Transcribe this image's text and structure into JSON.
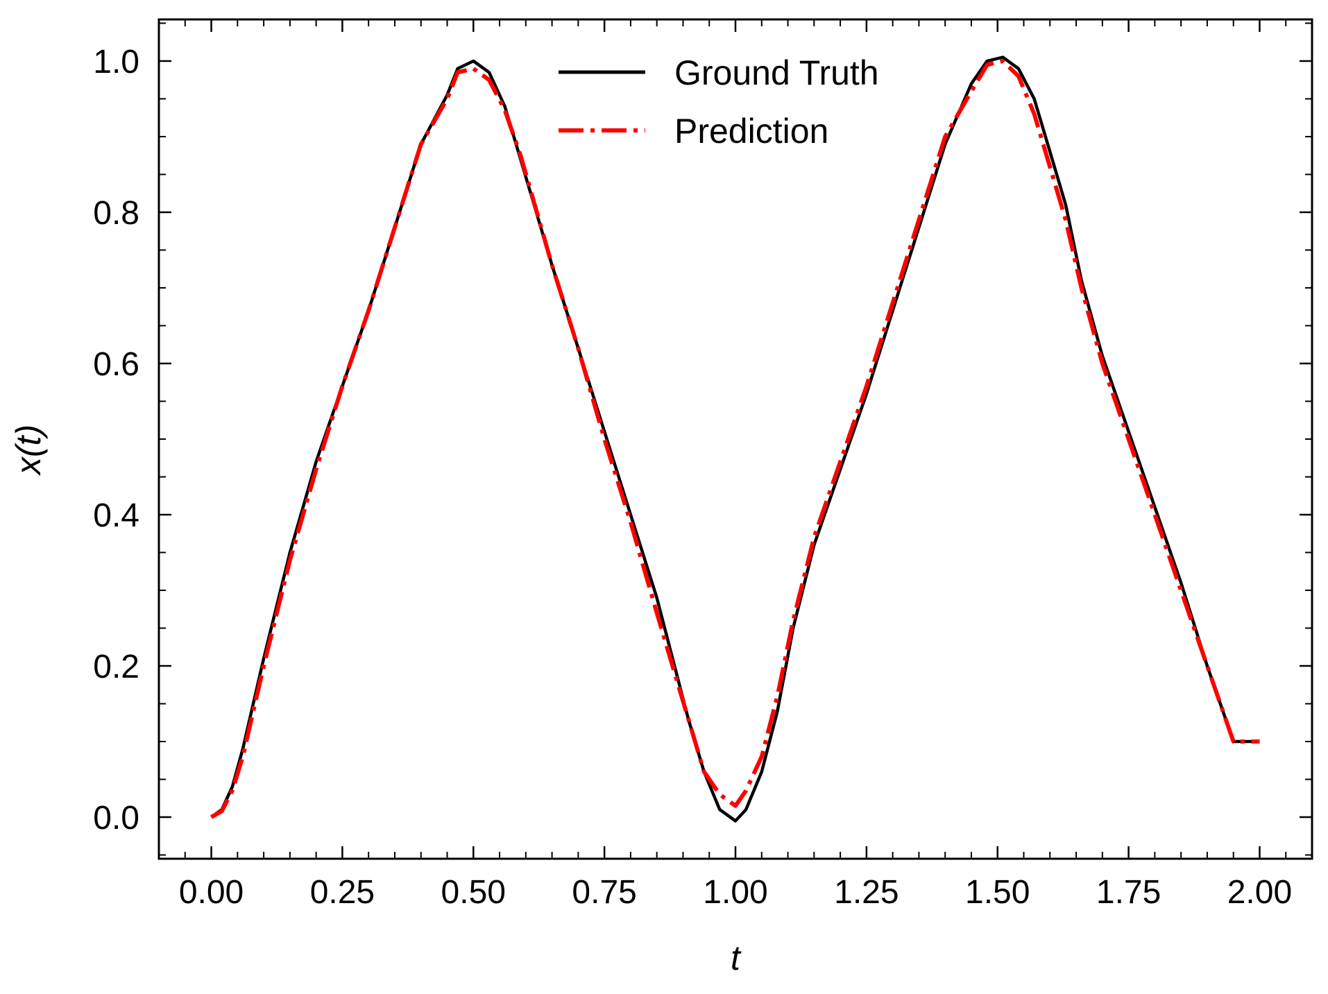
{
  "chart_data": {
    "type": "line",
    "title": "",
    "xlabel": "t",
    "ylabel_base": "x(",
    "ylabel_var": "t",
    "ylabel_close": ")",
    "xlim": [
      -0.1,
      2.1
    ],
    "ylim": [
      -0.055,
      1.055
    ],
    "x_ticks": [
      0.0,
      0.25,
      0.5,
      0.75,
      1.0,
      1.25,
      1.5,
      1.75,
      2.0
    ],
    "x_tick_labels": [
      "0.00",
      "0.25",
      "0.50",
      "0.75",
      "1.00",
      "1.25",
      "1.50",
      "1.75",
      "2.00"
    ],
    "y_ticks": [
      0.0,
      0.2,
      0.4,
      0.6,
      0.8,
      1.0
    ],
    "y_tick_labels": [
      "0.0",
      "0.2",
      "0.4",
      "0.6",
      "0.8",
      "1.0"
    ],
    "x_minor_step": 0.05,
    "y_minor_step": 0.05,
    "grid": false,
    "legend_position": "top-center",
    "series": [
      {
        "name": "Ground Truth",
        "color": "#000000",
        "style": "solid",
        "x": [
          0.0,
          0.02,
          0.04,
          0.06,
          0.08,
          0.1,
          0.125,
          0.15,
          0.175,
          0.2,
          0.25,
          0.3,
          0.35,
          0.4,
          0.45,
          0.47,
          0.5,
          0.53,
          0.56,
          0.59,
          0.65,
          0.7,
          0.75,
          0.8,
          0.85,
          0.88,
          0.91,
          0.94,
          0.97,
          1.0,
          1.02,
          1.05,
          1.08,
          1.11,
          1.15,
          1.2,
          1.25,
          1.3,
          1.35,
          1.4,
          1.45,
          1.48,
          1.51,
          1.54,
          1.57,
          1.6,
          1.63,
          1.66,
          1.7,
          1.75,
          1.8,
          1.85,
          1.9,
          1.95,
          2.0
        ],
        "y": [
          0.0,
          0.01,
          0.04,
          0.09,
          0.15,
          0.21,
          0.28,
          0.35,
          0.41,
          0.47,
          0.57,
          0.67,
          0.78,
          0.89,
          0.955,
          0.99,
          1.0,
          0.985,
          0.94,
          0.87,
          0.73,
          0.62,
          0.51,
          0.4,
          0.29,
          0.21,
          0.13,
          0.06,
          0.01,
          -0.005,
          0.01,
          0.06,
          0.14,
          0.25,
          0.36,
          0.46,
          0.56,
          0.67,
          0.78,
          0.89,
          0.97,
          1.0,
          1.005,
          0.99,
          0.95,
          0.88,
          0.81,
          0.71,
          0.61,
          0.51,
          0.41,
          0.31,
          0.2,
          0.1,
          0.1
        ]
      },
      {
        "name": "Prediction",
        "color": "#ff0000",
        "style": "dashdot",
        "x": [
          0.0,
          0.02,
          0.04,
          0.06,
          0.08,
          0.1,
          0.125,
          0.15,
          0.175,
          0.2,
          0.25,
          0.3,
          0.35,
          0.4,
          0.45,
          0.47,
          0.5,
          0.53,
          0.56,
          0.59,
          0.65,
          0.7,
          0.75,
          0.8,
          0.85,
          0.88,
          0.91,
          0.94,
          0.97,
          1.0,
          1.02,
          1.05,
          1.08,
          1.11,
          1.15,
          1.2,
          1.25,
          1.3,
          1.35,
          1.4,
          1.45,
          1.48,
          1.51,
          1.54,
          1.57,
          1.6,
          1.63,
          1.66,
          1.7,
          1.75,
          1.8,
          1.85,
          1.9,
          1.95,
          2.0
        ],
        "y": [
          0.0,
          0.008,
          0.035,
          0.08,
          0.14,
          0.2,
          0.27,
          0.34,
          0.4,
          0.46,
          0.57,
          0.67,
          0.78,
          0.89,
          0.95,
          0.985,
          0.99,
          0.975,
          0.935,
          0.875,
          0.73,
          0.62,
          0.5,
          0.39,
          0.27,
          0.2,
          0.13,
          0.06,
          0.03,
          0.015,
          0.035,
          0.08,
          0.16,
          0.26,
          0.37,
          0.47,
          0.57,
          0.68,
          0.79,
          0.9,
          0.96,
          0.995,
          1.0,
          0.98,
          0.93,
          0.86,
          0.79,
          0.7,
          0.6,
          0.5,
          0.4,
          0.3,
          0.2,
          0.1,
          0.1
        ]
      }
    ]
  }
}
